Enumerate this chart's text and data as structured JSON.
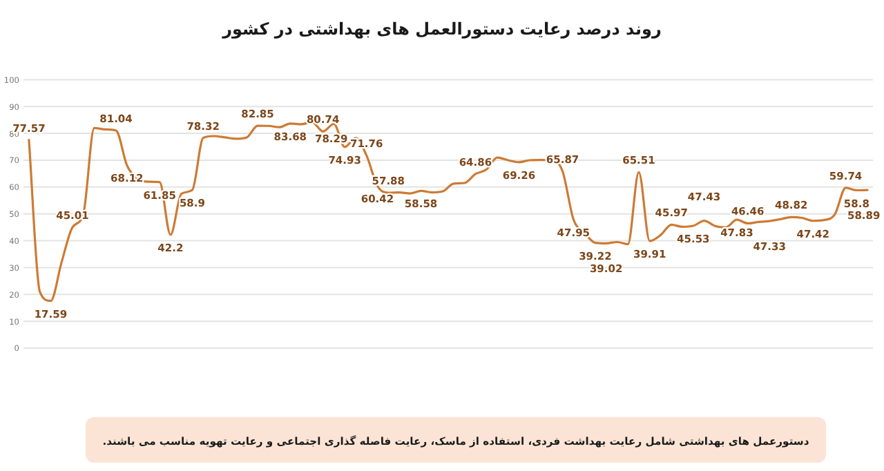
{
  "chart_data": {
    "type": "line",
    "title": "روند درصد رعایت دستورالعمل های بهداشتی در کشور",
    "annotations": [
      "دستورعمل های بهداشتی شامل رعایت بهداشت فردی، استفاده از ماسک، رعایت فاصله گذاری اجتماعی و رعایت تهویه مناسب می باشند."
    ],
    "categories": [
      null,
      null,
      null,
      null,
      null,
      null,
      null,
      null,
      null,
      null,
      null,
      null,
      null,
      null,
      null,
      null,
      null,
      null,
      null,
      null,
      null,
      null,
      null,
      null,
      null,
      null,
      null,
      null,
      null,
      null,
      null,
      null,
      null,
      null,
      null,
      null,
      null,
      null,
      null,
      null,
      null,
      null,
      null,
      null,
      null,
      null,
      null,
      null,
      null,
      null,
      null,
      null,
      null,
      null,
      null,
      null,
      null,
      null,
      null,
      null,
      null,
      null,
      null,
      null,
      null,
      null,
      null,
      null,
      null,
      null,
      null,
      null,
      null,
      null,
      null,
      null,
      null,
      null
    ],
    "values": [
      77.57,
      21,
      17.59,
      32,
      45.01,
      50,
      82,
      81.5,
      81.04,
      68.12,
      63,
      62,
      61.85,
      42.2,
      57.5,
      58.9,
      78.32,
      79,
      78.5,
      78,
      78.5,
      82.85,
      82.8,
      82.3,
      83.68,
      83.4,
      84.2,
      80.74,
      83.5,
      74.93,
      78.29,
      71.76,
      60.42,
      57.88,
      58,
      57.6,
      58.58,
      58,
      58.4,
      61.3,
      61.5,
      64.86,
      66.5,
      71,
      70,
      69.26,
      70,
      70.1,
      70,
      65.87,
      47.95,
      43,
      39.22,
      39.02,
      39.5,
      38.7,
      65.51,
      39.91,
      42.1,
      45.97,
      45.2,
      45.53,
      47.43,
      45.5,
      45,
      47.83,
      46.46,
      47,
      47.33,
      48,
      48.82,
      48.5,
      47.42,
      47.7,
      49.8,
      59.74,
      58.8,
      58.89
    ],
    "value_labels": [
      "77.57",
      null,
      "17.59",
      null,
      "45.01",
      null,
      null,
      null,
      "81.04",
      "68.12",
      null,
      null,
      "61.85",
      "42.2",
      null,
      "58.9",
      "78.32",
      null,
      null,
      null,
      null,
      "82.85",
      null,
      null,
      "83.68",
      null,
      null,
      "80.74",
      null,
      "74.93",
      "78.29",
      "71.76",
      "60.42",
      "57.88",
      null,
      null,
      "58.58",
      null,
      null,
      null,
      null,
      "64.86",
      null,
      null,
      null,
      "69.26",
      null,
      null,
      null,
      "65.87",
      "47.95",
      null,
      "39.22",
      "39.02",
      null,
      null,
      "65.51",
      "39.91",
      null,
      "45.97",
      null,
      "45.53",
      "47.43",
      null,
      null,
      "47.83",
      "46.46",
      null,
      "47.33",
      null,
      "48.82",
      null,
      "47.42",
      null,
      null,
      "59.74",
      "58.8",
      "58.89"
    ],
    "color": "#cd7a34",
    "ylim": [
      0,
      100
    ],
    "yticks": [
      0,
      10,
      20,
      30,
      40,
      50,
      60,
      70,
      80,
      90,
      100
    ],
    "grid": "y",
    "tick_labels": "y",
    "marker": "none",
    "line_style": "solid"
  }
}
